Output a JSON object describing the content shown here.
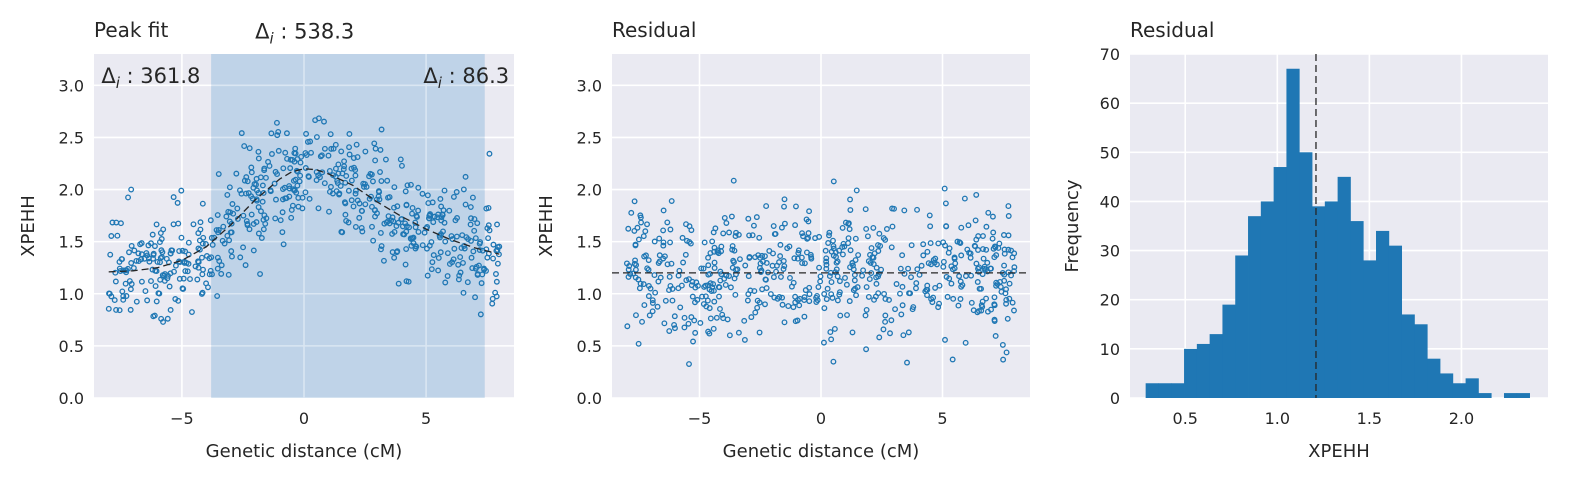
{
  "colors": {
    "panel_bg": "#EAEAF2",
    "grid": "#FFFFFF",
    "marker": "#1F77B4",
    "bar": "#1F77B4",
    "span": "#BCD2E8",
    "line": "#262626"
  },
  "chart_data": [
    {
      "type": "scatter",
      "title": "Peak fit",
      "xlabel": "Genetic distance (cM)",
      "ylabel": "XPEHH",
      "xlim": [
        -8.6,
        8.6
      ],
      "ylim": [
        0,
        3.3
      ],
      "xticks": [
        -5,
        0,
        5
      ],
      "xtick_labels": [
        "−5",
        "0",
        "5"
      ],
      "yticks": [
        0,
        0.5,
        1.0,
        1.5,
        2.0,
        2.5,
        3.0
      ],
      "ytick_labels": [
        "0.0",
        "0.5",
        "1.0",
        "1.5",
        "2.0",
        "2.5",
        "3.0"
      ],
      "grid": true,
      "shaded_span": [
        -3.8,
        7.4
      ],
      "annotations": [
        {
          "prefix": "Δ",
          "sub": "i",
          "text": " : 538.3",
          "x": -2.0,
          "y": 3.45,
          "anchor": "start"
        },
        {
          "prefix": "Δ",
          "sub": "i",
          "text": " : 361.8",
          "x": -8.3,
          "y": 3.02,
          "anchor": "start"
        },
        {
          "prefix": "Δ",
          "sub": "i",
          "text": " : 86.3",
          "x": 8.4,
          "y": 3.02,
          "anchor": "end"
        }
      ],
      "fit_curve": {
        "style": "dashed",
        "x": [
          -8,
          -7,
          -6,
          -5,
          -4,
          -3,
          -2,
          -1,
          -0.5,
          0,
          0.5,
          1,
          2,
          3,
          4,
          5,
          6,
          7,
          8
        ],
        "y": [
          1.21,
          1.22,
          1.25,
          1.32,
          1.45,
          1.66,
          1.9,
          2.1,
          2.17,
          2.2,
          2.19,
          2.15,
          2.04,
          1.88,
          1.74,
          1.62,
          1.52,
          1.44,
          1.38
        ]
      },
      "points_model": {
        "count": 620,
        "x_range": [
          -8,
          8
        ],
        "y_spread": 0.25,
        "seed": 7
      }
    },
    {
      "type": "scatter",
      "title": "Residual",
      "xlabel": "Genetic distance (cM)",
      "ylabel": "XPEHH",
      "xlim": [
        -8.6,
        8.6
      ],
      "ylim": [
        0,
        3.3
      ],
      "xticks": [
        -5,
        0,
        5
      ],
      "xtick_labels": [
        "−5",
        "0",
        "5"
      ],
      "yticks": [
        0,
        0.5,
        1.0,
        1.5,
        2.0,
        2.5,
        3.0
      ],
      "ytick_labels": [
        "0.0",
        "0.5",
        "1.0",
        "1.5",
        "2.0",
        "2.5",
        "3.0"
      ],
      "grid": true,
      "hline": {
        "y": 1.2,
        "style": "dashed"
      },
      "points_model": {
        "count": 620,
        "x_range": [
          -8,
          8
        ],
        "center": 1.2,
        "y_spread": 0.32,
        "seed": 13
      }
    },
    {
      "type": "bar",
      "title": "Residual",
      "xlabel": "XPEHH",
      "ylabel": "Frequency",
      "xlim": [
        0.2,
        2.47
      ],
      "ylim": [
        0,
        70
      ],
      "xticks": [
        0.5,
        1.0,
        1.5,
        2.0
      ],
      "xtick_labels": [
        "0.5",
        "1.0",
        "1.5",
        "2.0"
      ],
      "yticks": [
        0,
        10,
        20,
        30,
        40,
        50,
        60,
        70
      ],
      "ytick_labels": [
        "0",
        "10",
        "20",
        "30",
        "40",
        "50",
        "60",
        "70"
      ],
      "grid": true,
      "vline": {
        "x": 1.21,
        "style": "dashed"
      },
      "bin_start": 0.285,
      "bin_width": 0.0695,
      "values": [
        3,
        3,
        3,
        10,
        11,
        13,
        19,
        29,
        37,
        40,
        47,
        67,
        50,
        39,
        40,
        45,
        36,
        28,
        34,
        31,
        17,
        15,
        8,
        5,
        3,
        4,
        1,
        0,
        1,
        1
      ]
    }
  ]
}
